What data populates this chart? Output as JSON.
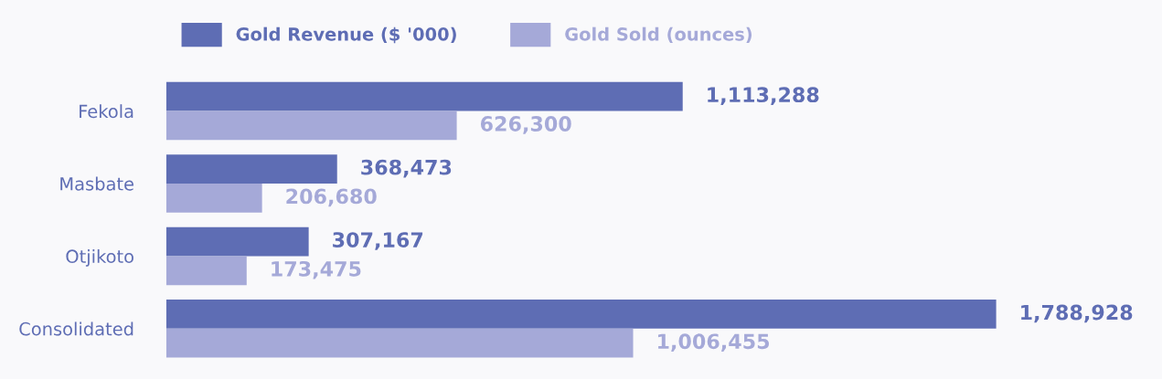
{
  "chart_data": {
    "type": "bar",
    "orientation": "horizontal",
    "categories": [
      "Fekola",
      "Masbate",
      "Otjikoto",
      "Consolidated"
    ],
    "series": [
      {
        "name": "Gold Revenue ($ '000)",
        "color": "#5e6db4",
        "values": [
          1113288,
          368473,
          307167,
          1788928
        ],
        "value_labels": [
          "1,113,288",
          "368,473",
          "307,167",
          "1,788,928"
        ]
      },
      {
        "name": "Gold Sold (ounces)",
        "color": "#a5a9d8",
        "values": [
          626300,
          206680,
          173475,
          1006455
        ],
        "value_labels": [
          "626,300",
          "206,680",
          "173,475",
          "1,006,455"
        ]
      }
    ],
    "legend": "top",
    "grid": false
  }
}
